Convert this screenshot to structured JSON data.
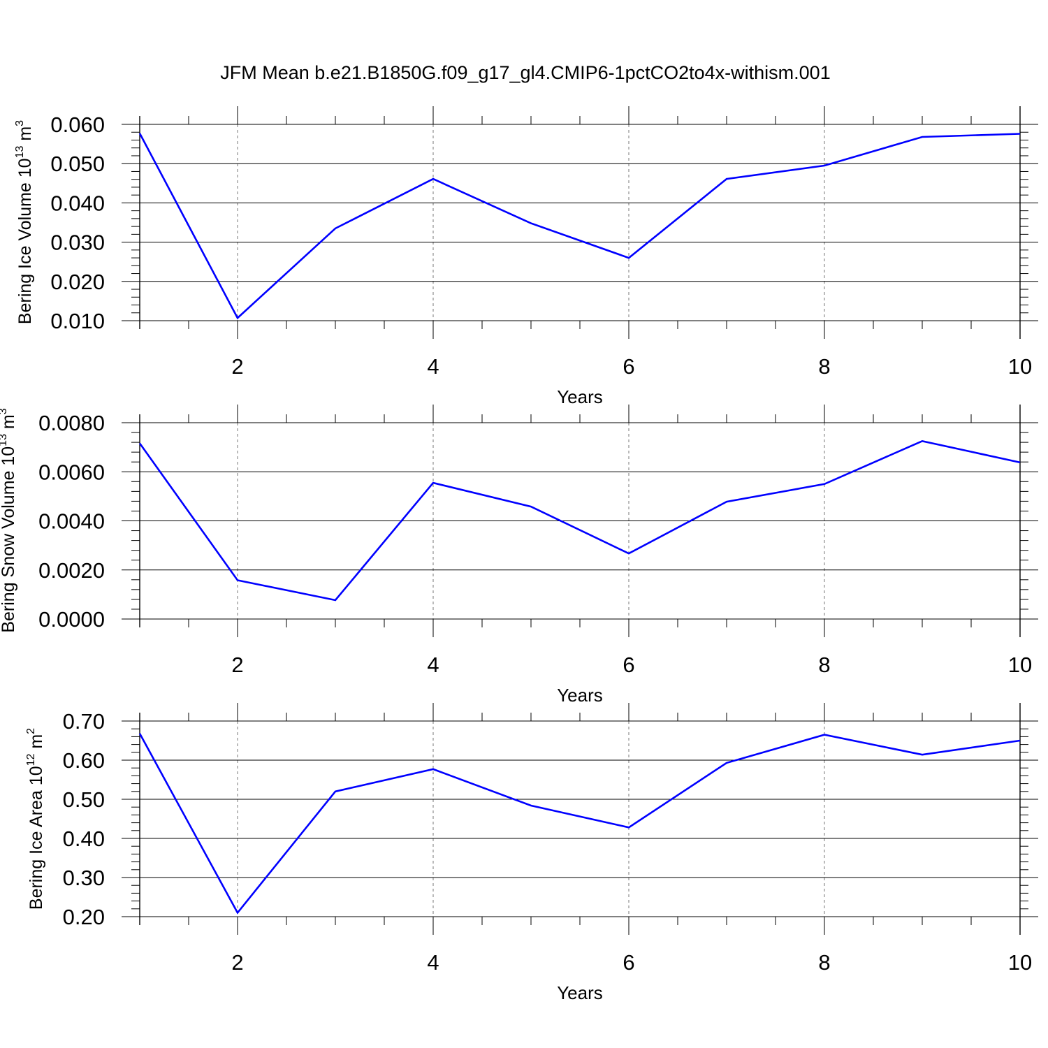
{
  "title": "JFM Mean b.e21.B1850G.f09_g17_gl4.CMIP6-1pctCO2to4x-withism.001",
  "line_color": "#0000ff",
  "chart_data": [
    {
      "type": "line",
      "xlabel": "Years",
      "ylabel": {
        "base": "Bering Ice Volume 10",
        "exponent": "13",
        "unit": " m",
        "unit_exponent": "3"
      },
      "xlim": [
        1,
        10
      ],
      "ylim": [
        0.01,
        0.06
      ],
      "xticks": [
        2,
        4,
        6,
        8,
        10
      ],
      "xtick_labels": [
        "2",
        "4",
        "6",
        "8",
        "10"
      ],
      "yticks": [
        0.01,
        0.02,
        0.03,
        0.04,
        0.05,
        0.06
      ],
      "ytick_labels": [
        "0.010",
        "0.020",
        "0.030",
        "0.040",
        "0.050",
        "0.060"
      ],
      "grid": "vertical dashed at major x ticks",
      "x": [
        1,
        2,
        3,
        4,
        5,
        6,
        7,
        8,
        9,
        10
      ],
      "series": [
        {
          "values": [
            0.0577,
            0.0107,
            0.0335,
            0.0461,
            0.0348,
            0.026,
            0.0461,
            0.0495,
            0.0568,
            0.0576
          ]
        }
      ]
    },
    {
      "type": "line",
      "xlabel": "Years",
      "ylabel": {
        "base": "Bering Snow Volume 10",
        "exponent": "13",
        "unit": " m",
        "unit_exponent": "3"
      },
      "xlim": [
        1,
        10
      ],
      "ylim": [
        0.0,
        0.008
      ],
      "xticks": [
        2,
        4,
        6,
        8,
        10
      ],
      "xtick_labels": [
        "2",
        "4",
        "6",
        "8",
        "10"
      ],
      "yticks": [
        0.0,
        0.002,
        0.004,
        0.006,
        0.008
      ],
      "ytick_labels": [
        "0.0000",
        "0.0020",
        "0.0040",
        "0.0060",
        "0.0080"
      ],
      "grid": "vertical dashed at major x ticks",
      "x": [
        1,
        2,
        3,
        4,
        5,
        6,
        7,
        8,
        9,
        10
      ],
      "series": [
        {
          "values": [
            0.00716,
            0.00158,
            0.00077,
            0.00555,
            0.00458,
            0.00267,
            0.00478,
            0.0055,
            0.00725,
            0.00638
          ]
        }
      ]
    },
    {
      "type": "line",
      "xlabel": "Years",
      "ylabel": {
        "base": "Bering Ice Area 10",
        "exponent": "12",
        "unit": " m",
        "unit_exponent": "2"
      },
      "xlim": [
        1,
        10
      ],
      "ylim": [
        0.2,
        0.7
      ],
      "xticks": [
        2,
        4,
        6,
        8,
        10
      ],
      "xtick_labels": [
        "2",
        "4",
        "6",
        "8",
        "10"
      ],
      "yticks": [
        0.2,
        0.3,
        0.4,
        0.5,
        0.6,
        0.7
      ],
      "ytick_labels": [
        "0.20",
        "0.30",
        "0.40",
        "0.50",
        "0.60",
        "0.70"
      ],
      "grid": "vertical dashed at major x ticks",
      "x": [
        1,
        2,
        3,
        4,
        5,
        6,
        7,
        8,
        9,
        10
      ],
      "series": [
        {
          "values": [
            0.668,
            0.21,
            0.52,
            0.577,
            0.484,
            0.428,
            0.593,
            0.665,
            0.614,
            0.65
          ]
        }
      ]
    }
  ]
}
